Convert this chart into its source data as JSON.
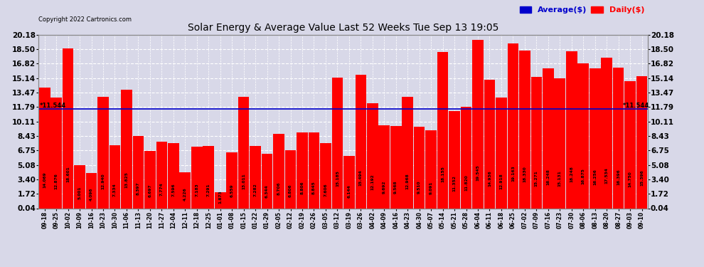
{
  "title": "Solar Energy & Average Value Last 52 Weeks Tue Sep 13 19:05",
  "copyright": "Copyright 2022 Cartronics.com",
  "average_value": 11.544,
  "average_label": "11.544",
  "ylim": [
    0.04,
    20.18
  ],
  "yticks": [
    0.04,
    1.72,
    3.4,
    5.08,
    6.75,
    8.43,
    10.11,
    11.79,
    13.47,
    15.14,
    16.82,
    18.5,
    20.18
  ],
  "bar_color": "#ff0000",
  "avg_line_color": "#0000cc",
  "legend_avg_color": "#0000cc",
  "legend_daily_color": "#ff0000",
  "background_color": "#d8d8e8",
  "grid_color": "#ffffff",
  "categories": [
    "09-18",
    "09-25",
    "10-02",
    "10-09",
    "10-16",
    "10-23",
    "10-30",
    "11-06",
    "11-13",
    "11-20",
    "11-27",
    "12-04",
    "12-11",
    "12-18",
    "12-25",
    "01-01",
    "01-08",
    "01-15",
    "01-22",
    "01-29",
    "02-05",
    "02-12",
    "02-19",
    "02-26",
    "03-05",
    "03-12",
    "03-19",
    "03-26",
    "04-02",
    "04-09",
    "04-16",
    "04-23",
    "04-30",
    "05-07",
    "05-14",
    "05-21",
    "05-28",
    "06-04",
    "06-11",
    "06-18",
    "06-25",
    "07-02",
    "07-09",
    "07-16",
    "07-23",
    "07-30",
    "08-06",
    "08-13",
    "08-20",
    "08-27",
    "09-03",
    "09-10"
  ],
  "values": [
    14.069,
    12.876,
    18.601,
    5.001,
    4.096,
    12.94,
    7.334,
    13.825,
    8.397,
    6.697,
    7.774,
    7.596,
    4.226,
    7.183,
    7.291,
    1.873,
    6.559,
    13.011,
    7.282,
    6.344,
    8.706,
    6.806,
    8.806,
    8.845,
    7.606,
    15.185,
    6.144,
    15.494,
    12.192,
    9.692,
    9.568,
    12.968,
    9.51,
    9.091,
    18.155,
    11.352,
    11.82,
    19.545,
    14.936,
    12.918,
    19.163,
    18.33,
    15.271,
    16.248,
    15.131,
    18.248,
    16.875,
    16.256,
    17.534,
    16.396,
    14.75,
    15.396
  ]
}
